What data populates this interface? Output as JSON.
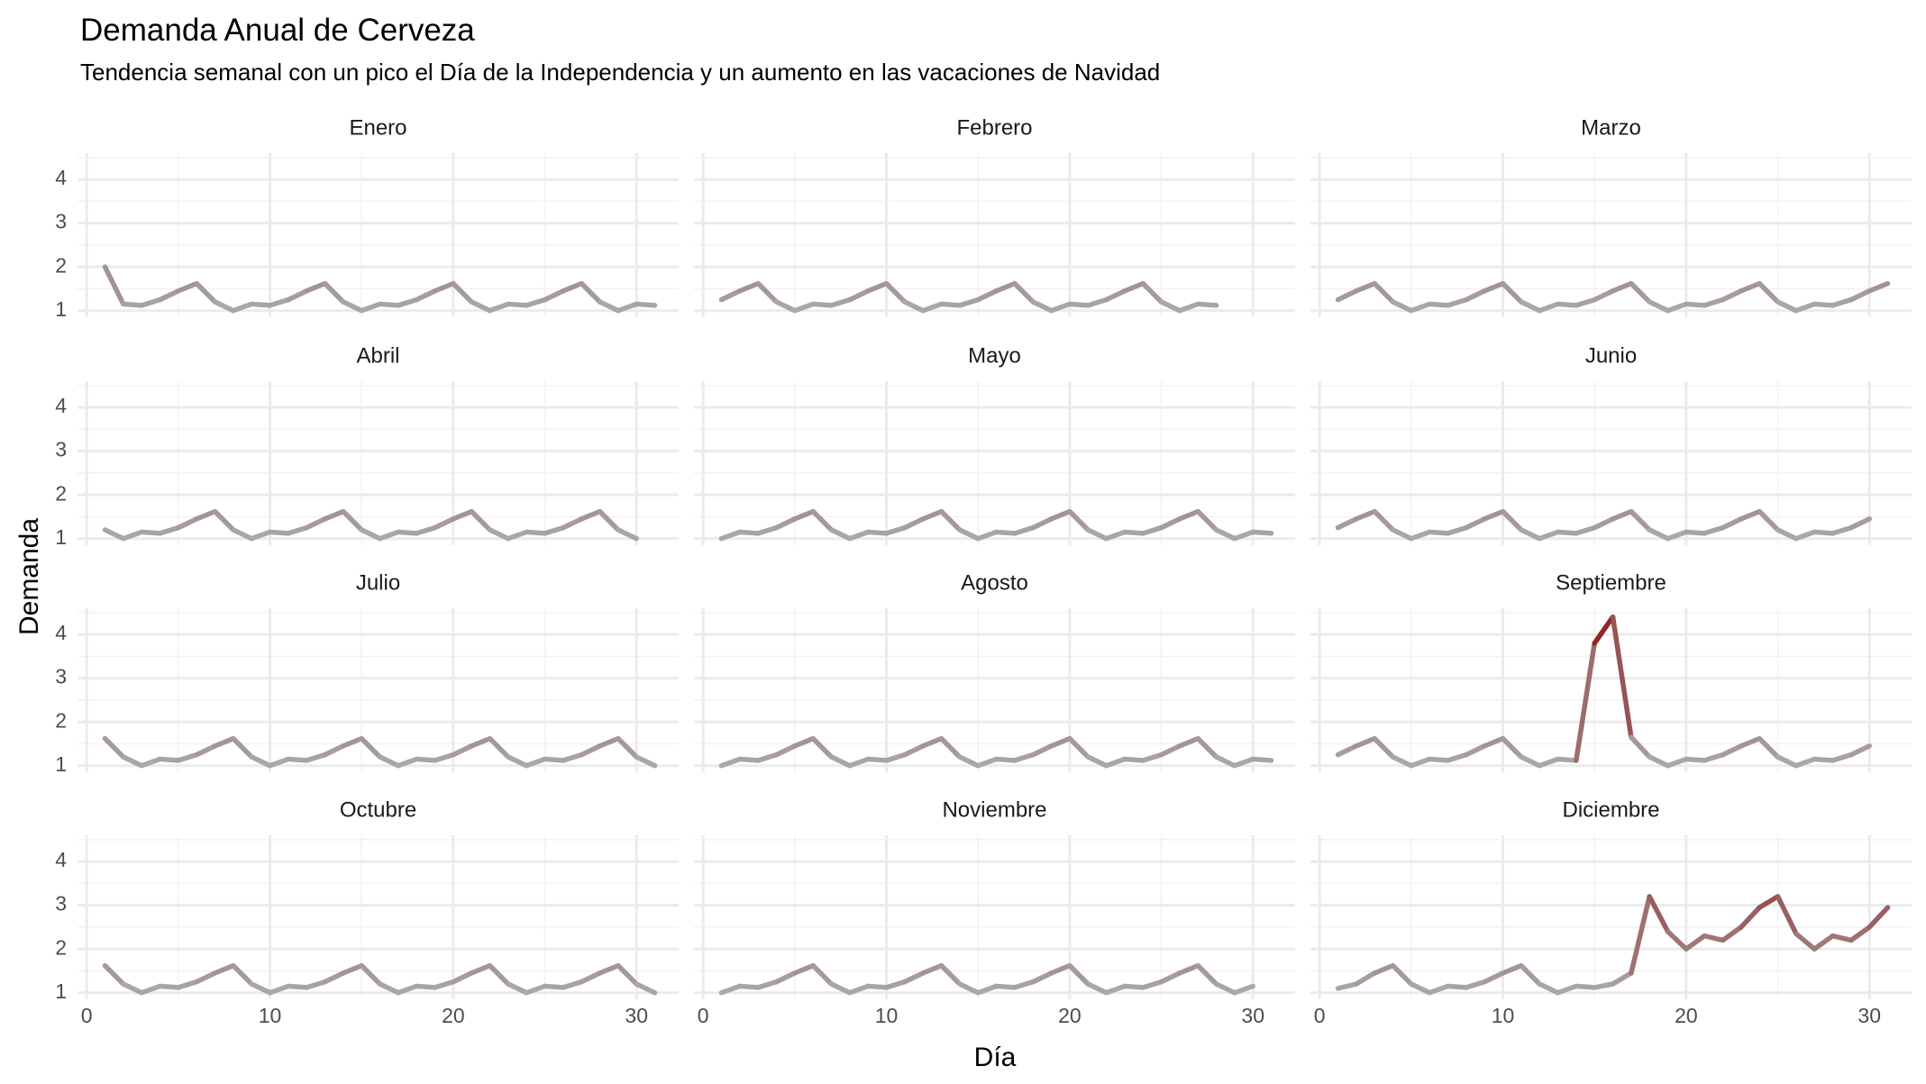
{
  "chart_data": {
    "type": "line",
    "title": "Demanda Anual de Cerveza",
    "subtitle": "Tendencia semanal con un pico el Día de la Independencia y un aumento en las vacaciones de Navidad",
    "x_label": "Día",
    "y_label": "Demanda",
    "xlim": [
      -0.5,
      32.3
    ],
    "ylim": [
      0.85,
      4.6
    ],
    "xticks": [
      0,
      10,
      20,
      30
    ],
    "yticks": [
      1,
      2,
      3,
      4
    ],
    "x_minor_ticks": [
      5,
      15,
      25
    ],
    "y_minor_ticks": [
      1.5,
      2.5,
      3.5,
      4.5
    ],
    "grid": true,
    "color_scale": [
      "#aaaaaa",
      "#8b1a1a"
    ],
    "facets": [
      {
        "title": "Enero",
        "x": [
          1,
          2,
          3,
          4,
          5,
          6,
          7,
          8,
          9,
          10,
          11,
          12,
          13,
          14,
          15,
          16,
          17,
          18,
          19,
          20,
          21,
          22,
          23,
          24,
          25,
          26,
          27,
          28,
          29,
          30,
          31
        ],
        "values": [
          2.0,
          1.15,
          1.12,
          1.25,
          1.45,
          1.62,
          1.2,
          1.0,
          1.15,
          1.12,
          1.25,
          1.45,
          1.62,
          1.2,
          1.0,
          1.15,
          1.12,
          1.25,
          1.45,
          1.62,
          1.2,
          1.0,
          1.15,
          1.12,
          1.25,
          1.45,
          1.62,
          1.2,
          1.0,
          1.15,
          1.12
        ]
      },
      {
        "title": "Febrero",
        "x": [
          1,
          2,
          3,
          4,
          5,
          6,
          7,
          8,
          9,
          10,
          11,
          12,
          13,
          14,
          15,
          16,
          17,
          18,
          19,
          20,
          21,
          22,
          23,
          24,
          25,
          26,
          27,
          28
        ],
        "values": [
          1.25,
          1.45,
          1.62,
          1.2,
          1.0,
          1.15,
          1.12,
          1.25,
          1.45,
          1.62,
          1.2,
          1.0,
          1.15,
          1.12,
          1.25,
          1.45,
          1.62,
          1.2,
          1.0,
          1.15,
          1.12,
          1.25,
          1.45,
          1.62,
          1.2,
          1.0,
          1.15,
          1.12
        ]
      },
      {
        "title": "Marzo",
        "x": [
          1,
          2,
          3,
          4,
          5,
          6,
          7,
          8,
          9,
          10,
          11,
          12,
          13,
          14,
          15,
          16,
          17,
          18,
          19,
          20,
          21,
          22,
          23,
          24,
          25,
          26,
          27,
          28,
          29,
          30,
          31
        ],
        "values": [
          1.25,
          1.45,
          1.62,
          1.2,
          1.0,
          1.15,
          1.12,
          1.25,
          1.45,
          1.62,
          1.2,
          1.0,
          1.15,
          1.12,
          1.25,
          1.45,
          1.62,
          1.2,
          1.0,
          1.15,
          1.12,
          1.25,
          1.45,
          1.62,
          1.2,
          1.0,
          1.15,
          1.12,
          1.25,
          1.45,
          1.62
        ]
      },
      {
        "title": "Abril",
        "x": [
          1,
          2,
          3,
          4,
          5,
          6,
          7,
          8,
          9,
          10,
          11,
          12,
          13,
          14,
          15,
          16,
          17,
          18,
          19,
          20,
          21,
          22,
          23,
          24,
          25,
          26,
          27,
          28,
          29,
          30
        ],
        "values": [
          1.2,
          1.0,
          1.15,
          1.12,
          1.25,
          1.45,
          1.62,
          1.2,
          1.0,
          1.15,
          1.12,
          1.25,
          1.45,
          1.62,
          1.2,
          1.0,
          1.15,
          1.12,
          1.25,
          1.45,
          1.62,
          1.2,
          1.0,
          1.15,
          1.12,
          1.25,
          1.45,
          1.62,
          1.2,
          1.0
        ]
      },
      {
        "title": "Mayo",
        "x": [
          1,
          2,
          3,
          4,
          5,
          6,
          7,
          8,
          9,
          10,
          11,
          12,
          13,
          14,
          15,
          16,
          17,
          18,
          19,
          20,
          21,
          22,
          23,
          24,
          25,
          26,
          27,
          28,
          29,
          30,
          31
        ],
        "values": [
          1.0,
          1.15,
          1.12,
          1.25,
          1.45,
          1.62,
          1.2,
          1.0,
          1.15,
          1.12,
          1.25,
          1.45,
          1.62,
          1.2,
          1.0,
          1.15,
          1.12,
          1.25,
          1.45,
          1.62,
          1.2,
          1.0,
          1.15,
          1.12,
          1.25,
          1.45,
          1.62,
          1.2,
          1.0,
          1.15,
          1.12
        ]
      },
      {
        "title": "Junio",
        "x": [
          1,
          2,
          3,
          4,
          5,
          6,
          7,
          8,
          9,
          10,
          11,
          12,
          13,
          14,
          15,
          16,
          17,
          18,
          19,
          20,
          21,
          22,
          23,
          24,
          25,
          26,
          27,
          28,
          29,
          30
        ],
        "values": [
          1.25,
          1.45,
          1.62,
          1.2,
          1.0,
          1.15,
          1.12,
          1.25,
          1.45,
          1.62,
          1.2,
          1.0,
          1.15,
          1.12,
          1.25,
          1.45,
          1.62,
          1.2,
          1.0,
          1.15,
          1.12,
          1.25,
          1.45,
          1.62,
          1.2,
          1.0,
          1.15,
          1.12,
          1.25,
          1.45
        ]
      },
      {
        "title": "Julio",
        "x": [
          1,
          2,
          3,
          4,
          5,
          6,
          7,
          8,
          9,
          10,
          11,
          12,
          13,
          14,
          15,
          16,
          17,
          18,
          19,
          20,
          21,
          22,
          23,
          24,
          25,
          26,
          27,
          28,
          29,
          30,
          31
        ],
        "values": [
          1.62,
          1.2,
          1.0,
          1.15,
          1.12,
          1.25,
          1.45,
          1.62,
          1.2,
          1.0,
          1.15,
          1.12,
          1.25,
          1.45,
          1.62,
          1.2,
          1.0,
          1.15,
          1.12,
          1.25,
          1.45,
          1.62,
          1.2,
          1.0,
          1.15,
          1.12,
          1.25,
          1.45,
          1.62,
          1.2,
          1.0
        ]
      },
      {
        "title": "Agosto",
        "x": [
          1,
          2,
          3,
          4,
          5,
          6,
          7,
          8,
          9,
          10,
          11,
          12,
          13,
          14,
          15,
          16,
          17,
          18,
          19,
          20,
          21,
          22,
          23,
          24,
          25,
          26,
          27,
          28,
          29,
          30,
          31
        ],
        "values": [
          1.0,
          1.15,
          1.12,
          1.25,
          1.45,
          1.62,
          1.2,
          1.0,
          1.15,
          1.12,
          1.25,
          1.45,
          1.62,
          1.2,
          1.0,
          1.15,
          1.12,
          1.25,
          1.45,
          1.62,
          1.2,
          1.0,
          1.15,
          1.12,
          1.25,
          1.45,
          1.62,
          1.2,
          1.0,
          1.15,
          1.12
        ]
      },
      {
        "title": "Septiembre",
        "x": [
          1,
          2,
          3,
          4,
          5,
          6,
          7,
          8,
          9,
          10,
          11,
          12,
          13,
          14,
          15,
          16,
          17,
          18,
          19,
          20,
          21,
          22,
          23,
          24,
          25,
          26,
          27,
          28,
          29,
          30
        ],
        "values": [
          1.25,
          1.45,
          1.62,
          1.2,
          1.0,
          1.15,
          1.12,
          1.25,
          1.45,
          1.62,
          1.2,
          1.0,
          1.15,
          1.12,
          3.8,
          4.4,
          1.65,
          1.2,
          1.0,
          1.15,
          1.12,
          1.25,
          1.45,
          1.62,
          1.2,
          1.0,
          1.15,
          1.12,
          1.25,
          1.45
        ]
      },
      {
        "title": "Octubre",
        "x": [
          1,
          2,
          3,
          4,
          5,
          6,
          7,
          8,
          9,
          10,
          11,
          12,
          13,
          14,
          15,
          16,
          17,
          18,
          19,
          20,
          21,
          22,
          23,
          24,
          25,
          26,
          27,
          28,
          29,
          30,
          31
        ],
        "values": [
          1.62,
          1.2,
          1.0,
          1.15,
          1.12,
          1.25,
          1.45,
          1.62,
          1.2,
          1.0,
          1.15,
          1.12,
          1.25,
          1.45,
          1.62,
          1.2,
          1.0,
          1.15,
          1.12,
          1.25,
          1.45,
          1.62,
          1.2,
          1.0,
          1.15,
          1.12,
          1.25,
          1.45,
          1.62,
          1.2,
          1.0
        ]
      },
      {
        "title": "Noviembre",
        "x": [
          1,
          2,
          3,
          4,
          5,
          6,
          7,
          8,
          9,
          10,
          11,
          12,
          13,
          14,
          15,
          16,
          17,
          18,
          19,
          20,
          21,
          22,
          23,
          24,
          25,
          26,
          27,
          28,
          29,
          30
        ],
        "values": [
          1.0,
          1.15,
          1.12,
          1.25,
          1.45,
          1.62,
          1.2,
          1.0,
          1.15,
          1.12,
          1.25,
          1.45,
          1.62,
          1.2,
          1.0,
          1.15,
          1.12,
          1.25,
          1.45,
          1.62,
          1.2,
          1.0,
          1.15,
          1.12,
          1.25,
          1.45,
          1.62,
          1.2,
          1.0,
          1.15
        ]
      },
      {
        "title": "Diciembre",
        "x": [
          1,
          2,
          3,
          4,
          5,
          6,
          7,
          8,
          9,
          10,
          11,
          12,
          13,
          14,
          15,
          16,
          17,
          18,
          19,
          20,
          21,
          22,
          23,
          24,
          25,
          26,
          27,
          28,
          29,
          30,
          31
        ],
        "values": [
          1.1,
          1.2,
          1.45,
          1.62,
          1.2,
          1.0,
          1.15,
          1.12,
          1.25,
          1.45,
          1.62,
          1.2,
          1.0,
          1.15,
          1.12,
          1.2,
          1.45,
          3.2,
          2.4,
          2.0,
          2.3,
          2.2,
          2.5,
          2.95,
          3.2,
          2.35,
          2.0,
          2.3,
          2.2,
          2.5,
          2.95
        ]
      }
    ]
  }
}
